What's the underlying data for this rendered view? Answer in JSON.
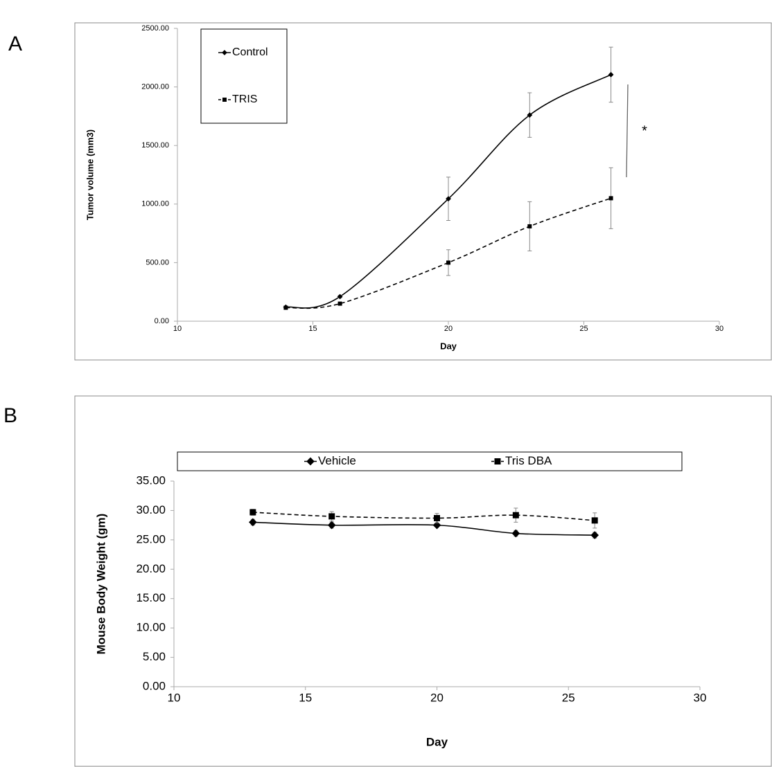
{
  "chart_data": [
    {
      "type": "line",
      "panel_label": "A",
      "xlabel": "Day",
      "ylabel": "Tumor volume (mm3)",
      "x": [
        14,
        16,
        20,
        23,
        26
      ],
      "series": [
        {
          "name": "Control",
          "color": "#000000",
          "line_style": "solid",
          "marker": "diamond",
          "values": [
            120,
            210,
            1045,
            1760,
            2105
          ],
          "errors": [
            5,
            10,
            185,
            190,
            235
          ]
        },
        {
          "name": "TRIS",
          "color": "#000000",
          "line_style": "dashed",
          "marker": "square",
          "values": [
            115,
            150,
            500,
            810,
            1050
          ],
          "errors": [
            5,
            10,
            110,
            210,
            260
          ]
        }
      ],
      "xlim": [
        10,
        30
      ],
      "xticks": [
        10,
        15,
        20,
        25,
        30
      ],
      "ylim": [
        0,
        2500
      ],
      "yticks": [
        {
          "value": 0,
          "label": "0.00"
        },
        {
          "value": 500,
          "label": "500.00"
        },
        {
          "value": 1000,
          "label": "1000.00"
        },
        {
          "value": 1500,
          "label": "1500.00"
        },
        {
          "value": 2000,
          "label": "2000.00"
        },
        {
          "value": 2500,
          "label": "2500.00"
        }
      ],
      "grid": false,
      "legend": "upper left",
      "annotation": "*"
    },
    {
      "type": "line",
      "panel_label": "B",
      "xlabel": "Day",
      "ylabel": "Mouse  Body  Weight (gm)",
      "x": [
        13,
        16,
        20,
        23,
        26
      ],
      "series": [
        {
          "name": "Vehicle",
          "color": "#000000",
          "line_style": "solid",
          "marker": "diamond",
          "values": [
            28.0,
            27.5,
            27.5,
            26.1,
            25.8
          ],
          "errors": [
            0.5,
            0.5,
            0.3,
            0.5,
            0.5
          ]
        },
        {
          "name": "Tris DBA",
          "color": "#000000",
          "line_style": "dashed",
          "marker": "square",
          "values": [
            29.7,
            29.0,
            28.7,
            29.2,
            28.3
          ],
          "errors": [
            0.5,
            0.8,
            0.8,
            1.2,
            1.3
          ]
        }
      ],
      "xlim": [
        10,
        30
      ],
      "xticks": [
        10,
        15,
        20,
        25,
        30
      ],
      "ylim": [
        0,
        35
      ],
      "yticks": [
        {
          "value": 0,
          "label": "0.00"
        },
        {
          "value": 5,
          "label": "5.00"
        },
        {
          "value": 10,
          "label": "10.00"
        },
        {
          "value": 15,
          "label": "15.00"
        },
        {
          "value": 20,
          "label": "20.00"
        },
        {
          "value": 25,
          "label": "25.00"
        },
        {
          "value": 30,
          "label": "30.00"
        },
        {
          "value": 35,
          "label": "35.00"
        }
      ],
      "grid": false,
      "legend": "top"
    }
  ]
}
